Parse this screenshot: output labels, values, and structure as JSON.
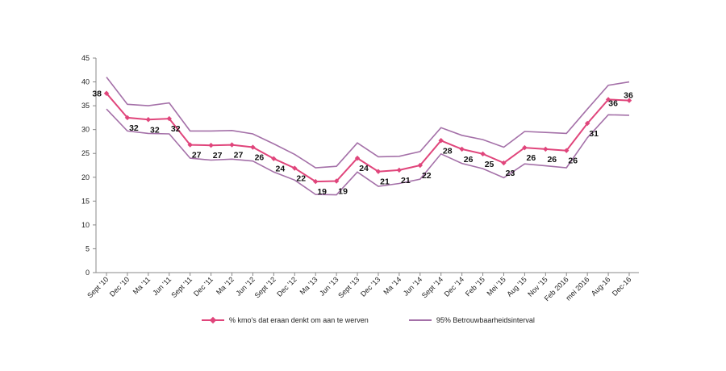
{
  "colors": {
    "main": "#e0457b",
    "ci": "#a470a8",
    "axis": "#888888"
  },
  "chart_data": {
    "type": "line",
    "categories": [
      "Sept '10",
      "Dec '10",
      "Ma '11",
      "Jun '11",
      "Sept '11",
      "Dec '11",
      "Ma '12",
      "Jun '12",
      "Sept '12",
      "Dec '12",
      "Ma '13",
      "Jun '13",
      "Sept '13",
      "Dec '13",
      "Ma '14",
      "Jun '14",
      "Sept '14",
      "Dec '14",
      "Feb '15",
      "Mei '15",
      "Aug '15",
      "Nov '15",
      "Feb 2016",
      "mei 2016",
      "Aug-16",
      "Dec-16"
    ],
    "ylim": [
      0,
      45
    ],
    "yticks": [
      0,
      5,
      10,
      15,
      20,
      25,
      30,
      35,
      40,
      45
    ],
    "series": [
      {
        "name": "% kmo's dat eraan denkt om aan te werven",
        "markers": true,
        "values": [
          37.6,
          32.5,
          32.1,
          32.3,
          26.8,
          26.7,
          26.8,
          26.3,
          23.9,
          21.9,
          19.1,
          19.2,
          24.0,
          21.2,
          21.5,
          22.5,
          27.7,
          25.9,
          24.9,
          23.0,
          26.2,
          25.9,
          25.6,
          31.3,
          36.3,
          36.1
        ],
        "labels": [
          38,
          32,
          32,
          32,
          27,
          27,
          27,
          26,
          24,
          22,
          19,
          19,
          24,
          21,
          21,
          22,
          28,
          26,
          25,
          23,
          26,
          26,
          26,
          31,
          36,
          36
        ]
      },
      {
        "name": "95% Betrouwbaarheidsinterval",
        "role": "upper",
        "values": [
          41.0,
          35.3,
          35.0,
          35.6,
          29.7,
          29.7,
          29.8,
          29.1,
          27.0,
          24.8,
          22.0,
          22.3,
          27.2,
          24.3,
          24.4,
          25.4,
          30.4,
          28.8,
          27.9,
          26.3,
          29.6,
          29.4,
          29.2,
          34.3,
          39.3,
          40.0
        ]
      },
      {
        "name": "95% Betrouwbaarheidsinterval",
        "role": "lower",
        "values": [
          34.3,
          29.7,
          29.2,
          29.1,
          24.0,
          23.6,
          23.8,
          23.4,
          21.1,
          19.4,
          16.4,
          16.3,
          21.1,
          18.1,
          18.7,
          19.6,
          24.9,
          22.9,
          21.8,
          19.9,
          22.8,
          22.4,
          22.0,
          28.3,
          33.1,
          33.0
        ]
      }
    ]
  },
  "legend": {
    "main_label": "% kmo's dat eraan denkt om aan te werven",
    "ci_label": "95% Betrouwbaarheidsinterval"
  }
}
